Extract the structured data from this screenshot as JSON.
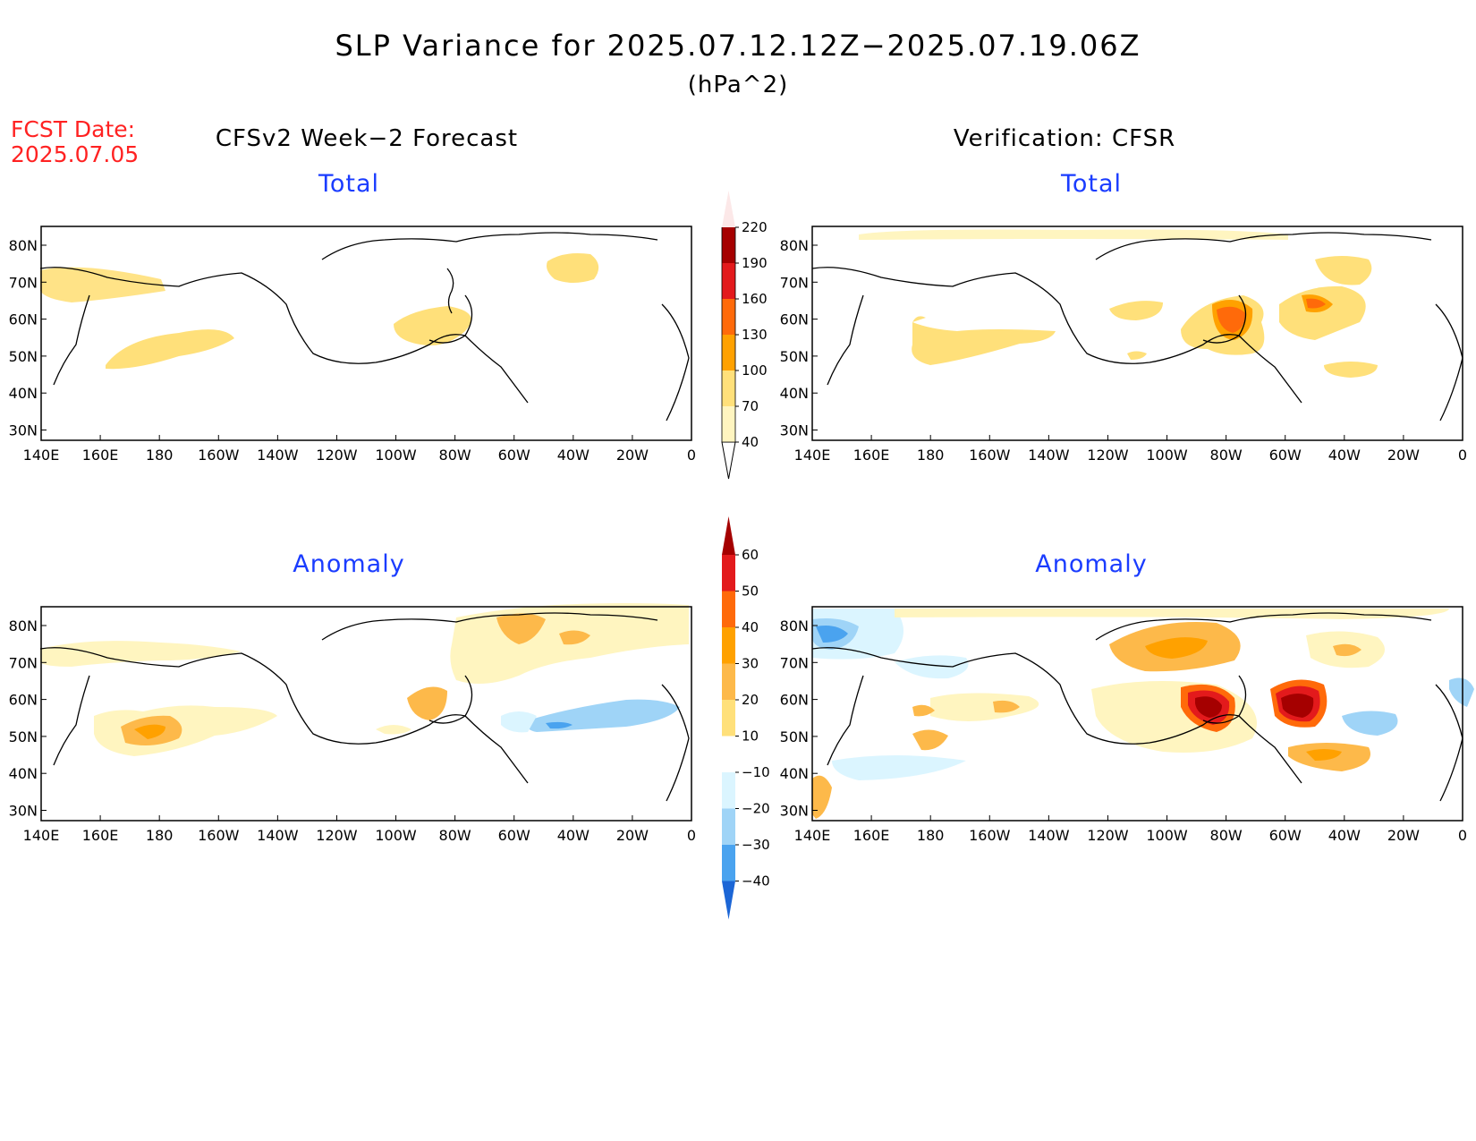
{
  "title": "SLP Variance for 2025.07.12.12Z−2025.07.19.06Z",
  "units": "(hPa^2)",
  "fcst": {
    "label": "FCST Date:",
    "date": "2025.07.05"
  },
  "columns": {
    "left": "CFSv2 Week−2 Forecast",
    "right": "Verification: CFSR"
  },
  "panels": {
    "fcst_total": {
      "title": "Total"
    },
    "verif_total": {
      "title": "Total"
    },
    "fcst_anom": {
      "title": "Anomaly"
    },
    "verif_anom": {
      "title": "Anomaly"
    }
  },
  "axes": {
    "lat_ticks": [
      "80N",
      "70N",
      "60N",
      "50N",
      "40N",
      "30N"
    ],
    "lon_ticks": [
      "140E",
      "160E",
      "180",
      "160W",
      "140W",
      "120W",
      "100W",
      "80W",
      "60W",
      "40W",
      "20W",
      "0"
    ]
  },
  "colorbars": {
    "total": {
      "levels": [
        "40",
        "70",
        "100",
        "130",
        "160",
        "190",
        "220"
      ],
      "colors": [
        "#fff5c0",
        "#ffe07a",
        "#ffa100",
        "#ff6a0a",
        "#e31a1c",
        "#a50000",
        "#f4a2a2",
        "#fce8e8"
      ]
    },
    "anomaly": {
      "levels": [
        "60",
        "50",
        "40",
        "30",
        "20",
        "10",
        "−10",
        "−20",
        "−30",
        "−40"
      ],
      "colors": [
        "#a50000",
        "#e31a1c",
        "#ff6a0a",
        "#ffa100",
        "#fdb94a",
        "#ffe07a",
        "#ffffff",
        "#dbf5ff",
        "#9fd4f7",
        "#4aa3ef",
        "#1c66d6"
      ]
    }
  }
}
